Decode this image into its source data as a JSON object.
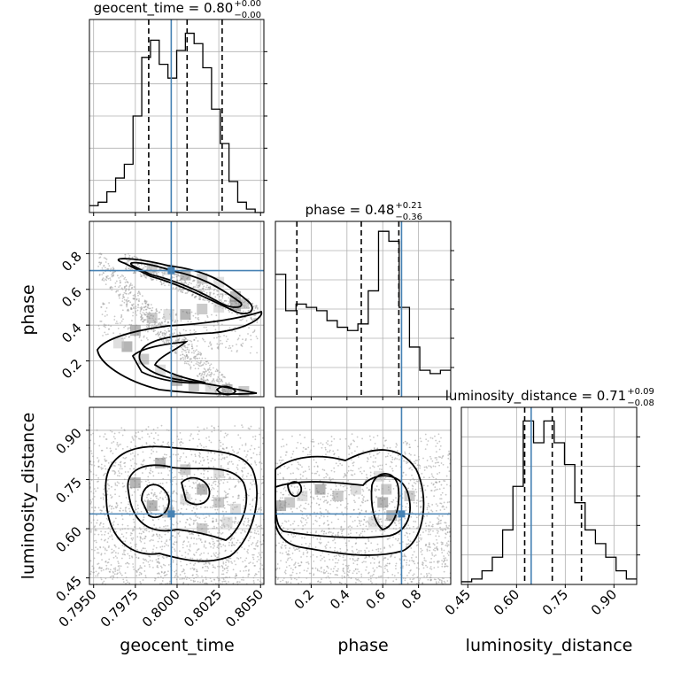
{
  "chart_data": {
    "type": "corner",
    "truth_color": "#4682b4",
    "parameters": [
      {
        "name": "geocent_time",
        "median": 0.8,
        "title": "geocent_time = 0.80",
        "title_sup": "+0.00",
        "title_sub": "−0.00",
        "range": [
          0.79475,
          0.8052
        ],
        "ticks": [
          0.795,
          0.7975,
          0.8,
          0.8025,
          0.805
        ],
        "tick_labels": [
          "0.7950",
          "0.7975",
          "0.8000",
          "0.8025",
          "0.8050"
        ],
        "quantiles": [
          0.7983,
          0.8006,
          0.8027
        ],
        "truth": 0.79965,
        "hist_bins": [
          0.79475,
          0.8052
        ],
        "hist": [
          2,
          3,
          6,
          10,
          14,
          28,
          45,
          50,
          43,
          39,
          47,
          52,
          49,
          42,
          30,
          20,
          9,
          3,
          1,
          0
        ],
        "hist_max": 56
      },
      {
        "name": "phase",
        "median": 0.48,
        "title": "phase = 0.48",
        "title_sup": "+0.21",
        "title_sub": "−0.36",
        "range": [
          0.0,
          0.98
        ],
        "ticks": [
          0.2,
          0.4,
          0.6,
          0.8
        ],
        "tick_labels": [
          "0.2",
          "0.4",
          "0.6",
          "0.8"
        ],
        "quantiles": [
          0.12,
          0.48,
          0.69
        ],
        "truth": 0.705,
        "hist_bins": [
          0.0,
          0.98
        ],
        "hist": [
          37,
          26,
          28,
          27,
          26,
          23,
          21,
          20,
          22,
          32,
          50,
          47,
          27,
          15,
          8,
          7,
          8
        ],
        "hist_max": 53
      },
      {
        "name": "luminosity_distance",
        "median": 0.71,
        "title": "luminosity_distance = 0.71",
        "title_sup": "+0.09",
        "title_sub": "−0.08",
        "range": [
          0.43,
          0.97
        ],
        "ticks": [
          0.45,
          0.6,
          0.75,
          0.9
        ],
        "tick_labels": [
          "0.45",
          "0.60",
          "0.75",
          "0.90"
        ],
        "quantiles": [
          0.625,
          0.71,
          0.8
        ],
        "truth": 0.645,
        "hist_bins": [
          0.43,
          0.97
        ],
        "hist": [
          1,
          2,
          5,
          10,
          20,
          36,
          60,
          52,
          60,
          52,
          44,
          30,
          20,
          15,
          10,
          5,
          2
        ],
        "hist_max": 65
      }
    ],
    "panel_ticks": {
      "phase_y": [
        "0.2",
        "0.4",
        "0.6",
        "0.8"
      ],
      "lum_y": [
        "0.45",
        "0.60",
        "0.75",
        "0.90"
      ]
    },
    "axis_labels": {
      "x": [
        "geocent_time",
        "phase",
        "luminosity_distance"
      ],
      "y": [
        "phase",
        "luminosity_distance"
      ]
    },
    "grid": true,
    "density_maps": {
      "time_phase": [
        [
          0.797,
          0.28
        ],
        [
          0.798,
          0.21
        ],
        [
          0.799,
          0.15
        ],
        [
          0.8,
          0.09
        ],
        [
          0.801,
          0.06
        ],
        [
          0.802,
          0.05
        ],
        [
          0.803,
          0.04
        ],
        [
          0.804,
          0.03
        ],
        [
          0.7965,
          0.3
        ],
        [
          0.7975,
          0.37
        ],
        [
          0.7985,
          0.44
        ],
        [
          0.7995,
          0.46
        ],
        [
          0.8005,
          0.46
        ],
        [
          0.8015,
          0.49
        ],
        [
          0.8025,
          0.5
        ],
        [
          0.8035,
          0.51
        ],
        [
          0.7985,
          0.72
        ],
        [
          0.7995,
          0.71
        ],
        [
          0.8005,
          0.68
        ],
        [
          0.8015,
          0.66
        ],
        [
          0.8025,
          0.64
        ],
        [
          0.8035,
          0.56
        ],
        [
          0.804,
          0.52
        ]
      ],
      "time_lum": [
        [
          0.7985,
          0.67
        ],
        [
          0.7995,
          0.65
        ],
        [
          0.8005,
          0.69
        ],
        [
          0.8015,
          0.72
        ],
        [
          0.8025,
          0.68
        ],
        [
          0.8035,
          0.66
        ],
        [
          0.7975,
          0.74
        ],
        [
          0.8005,
          0.78
        ],
        [
          0.8025,
          0.77
        ],
        [
          0.799,
          0.8
        ],
        [
          0.8015,
          0.6
        ],
        [
          0.803,
          0.62
        ]
      ],
      "phase_lum": [
        [
          0.03,
          0.67
        ],
        [
          0.08,
          0.68
        ],
        [
          0.15,
          0.7
        ],
        [
          0.25,
          0.72
        ],
        [
          0.35,
          0.7
        ],
        [
          0.45,
          0.72
        ],
        [
          0.6,
          0.68
        ],
        [
          0.62,
          0.72
        ],
        [
          0.58,
          0.76
        ],
        [
          0.65,
          0.64
        ],
        [
          0.75,
          0.7
        ],
        [
          0.55,
          0.62
        ]
      ]
    }
  }
}
